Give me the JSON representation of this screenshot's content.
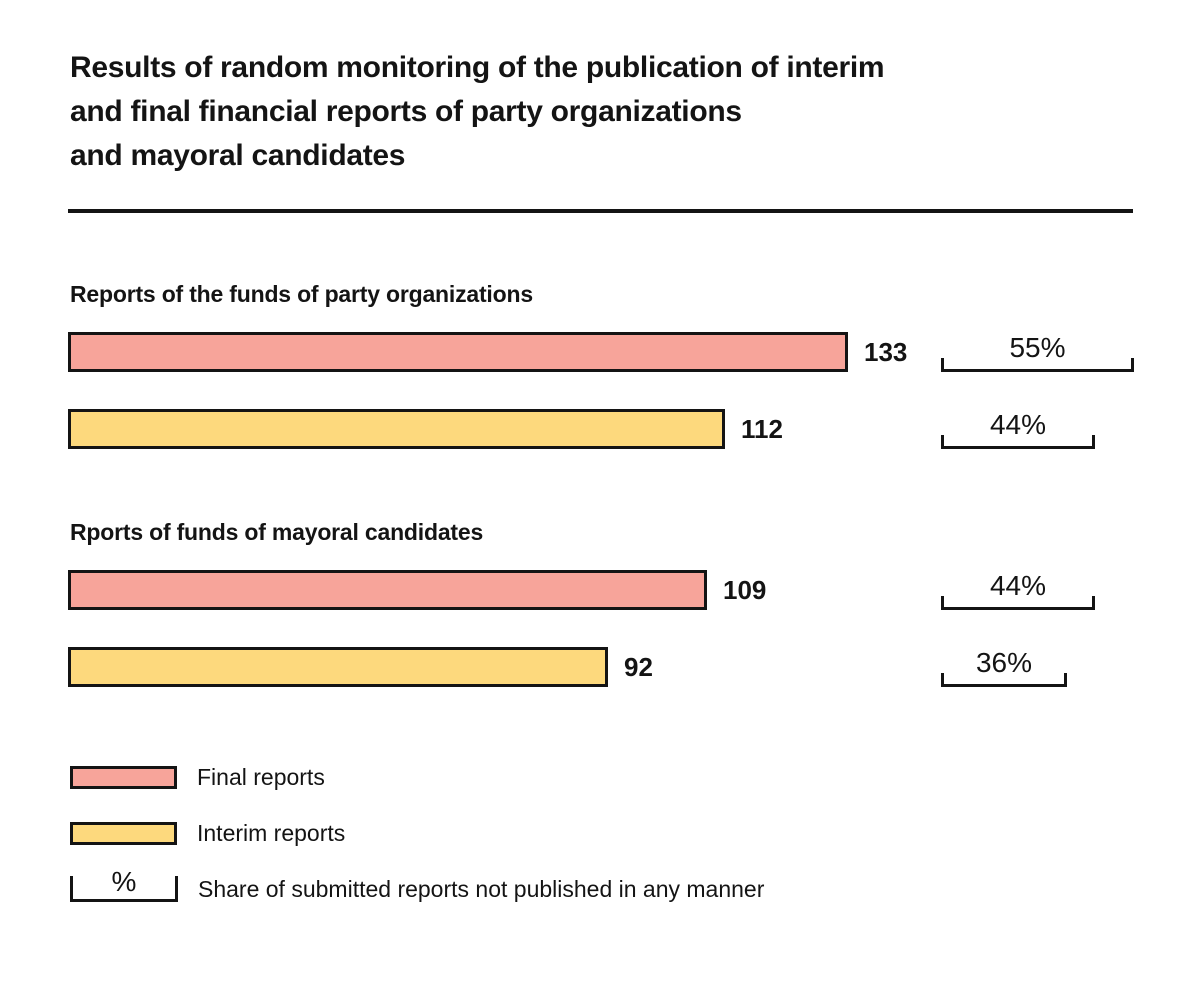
{
  "header": {
    "title_lines": [
      "Results of random monitoring of the publication of interim",
      "and final financial reports of party organizations",
      "and mayoral candidates"
    ]
  },
  "colors": {
    "final_reports": "#F7A49A",
    "interim_reports": "#FDD97D",
    "outline": "#141414",
    "text": "#141414",
    "background": "#FFFFFF"
  },
  "chart_data": {
    "type": "bar",
    "orientation": "horizontal",
    "title": "Results of random monitoring of the publication of interim and final financial reports of party organizations and mayoral candidates",
    "value_axis_max": 133,
    "legend_position": "bottom-left",
    "series_names": [
      "Final reports",
      "Interim reports"
    ],
    "groups": [
      {
        "label": "Reports of the funds of party organizations",
        "bars": [
          {
            "series": "Final reports",
            "series_key": "final_reports",
            "value": 133,
            "pct_value": 55,
            "not_published_share_pct": "55%"
          },
          {
            "series": "Interim reports",
            "series_key": "interim_reports",
            "value": 112,
            "pct_value": 44,
            "not_published_share_pct": "44%"
          }
        ]
      },
      {
        "label": "Rports of funds of mayoral candidates",
        "bars": [
          {
            "series": "Final reports",
            "series_key": "final_reports",
            "value": 109,
            "pct_value": 44,
            "not_published_share_pct": "44%"
          },
          {
            "series": "Interim reports",
            "series_key": "interim_reports",
            "value": 92,
            "pct_value": 36,
            "not_published_share_pct": "36%"
          }
        ]
      }
    ],
    "layout_hints": {
      "bar_length_proportional_to": "value",
      "bracket_width_proportional_to": "pct_value",
      "grid": false
    }
  },
  "legend": {
    "items": [
      {
        "key": "final_reports",
        "swatch": "color",
        "label": "Final reports"
      },
      {
        "key": "interim_reports",
        "swatch": "color",
        "label": "Interim reports"
      },
      {
        "key": "share_bracket",
        "swatch": "bracket",
        "symbol": "%",
        "label": "Share of submitted reports not published in any manner"
      }
    ]
  }
}
